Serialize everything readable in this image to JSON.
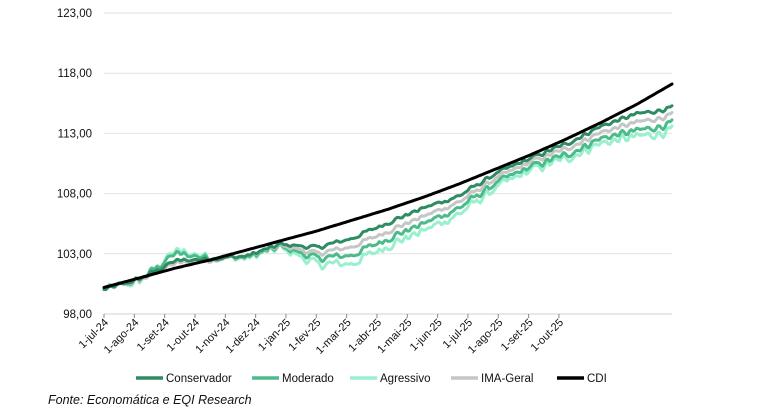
{
  "chart_data": {
    "type": "line",
    "title": "",
    "xlabel": "",
    "ylabel": "",
    "ylim": [
      98,
      123
    ],
    "y_ticks": [
      98,
      103,
      108,
      113,
      118,
      123
    ],
    "y_tick_labels": [
      "98,00",
      "103,00",
      "108,00",
      "113,00",
      "118,00",
      "123,00"
    ],
    "x_tick_labels": [
      "1-jul-24",
      "1-ago-24",
      "1-set-24",
      "1-out-24",
      "1-nov-24",
      "1-dez-24",
      "1-jan-25",
      "1-fev-25",
      "1-mar-25",
      "1-abr-25",
      "1-mai-25",
      "1-jun-25",
      "1-jul-25",
      "1-ago-25",
      "1-set-25",
      "1-out-25"
    ],
    "grid": "horizontal",
    "legend_position": "bottom",
    "series": [
      {
        "name": "Conservador",
        "color": "#2e8b62",
        "width": 3,
        "values": [
          100.0,
          100.9,
          102.4,
          102.6,
          102.8,
          103.8,
          103.5,
          104.3,
          105.6,
          106.8,
          107.8,
          109.6,
          110.9,
          112.1,
          113.6,
          114.6,
          115.1
        ]
      },
      {
        "name": "Moderado",
        "color": "#4cbb8a",
        "width": 3,
        "values": [
          100.0,
          100.8,
          103.0,
          102.7,
          102.7,
          103.6,
          102.6,
          102.9,
          104.3,
          105.5,
          106.8,
          108.8,
          110.2,
          111.2,
          112.6,
          113.2,
          113.8
        ]
      },
      {
        "name": "Agressivo",
        "color": "#99f0cf",
        "width": 3,
        "values": [
          100.0,
          100.7,
          103.2,
          102.8,
          102.6,
          103.5,
          102.1,
          102.2,
          103.7,
          104.9,
          106.3,
          108.4,
          109.9,
          110.9,
          112.2,
          112.7,
          113.2
        ]
      },
      {
        "name": "IMA-Geral",
        "color": "#c6c6c6",
        "width": 3,
        "values": [
          100.0,
          100.8,
          102.2,
          102.5,
          102.8,
          103.7,
          103.0,
          103.6,
          104.9,
          106.1,
          107.3,
          109.2,
          110.6,
          111.7,
          113.1,
          113.9,
          114.5
        ]
      },
      {
        "name": "CDI",
        "color": "#000000",
        "width": 3,
        "values": [
          100.2,
          101.0,
          101.8,
          102.5,
          103.3,
          104.1,
          104.9,
          105.8,
          106.7,
          107.7,
          108.8,
          110.0,
          111.2,
          112.5,
          113.9,
          115.4,
          117.1
        ]
      }
    ]
  },
  "source_text": "Fonte: Economática e EQI Research"
}
